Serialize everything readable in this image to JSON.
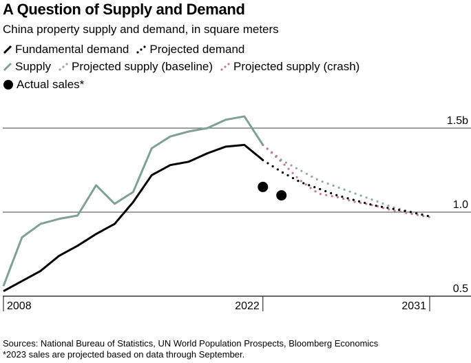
{
  "title": "A Question of Supply and Demand",
  "subtitle": "China property supply and demand, in square meters",
  "legend": [
    {
      "key": "demand",
      "label": "Fundamental demand",
      "style": "solid",
      "color": "#000000"
    },
    {
      "key": "proj_demand",
      "label": "Projected demand",
      "style": "dotted",
      "color": "#000000"
    },
    {
      "key": "supply",
      "label": "Supply",
      "style": "solid",
      "color": "#7fa195"
    },
    {
      "key": "proj_supply_base",
      "label": "Projected supply (baseline)",
      "style": "dotted",
      "color": "#8fa9a0"
    },
    {
      "key": "proj_supply_crash",
      "label": "Projected supply (crash)",
      "style": "dotted",
      "color": "#c07a9a"
    },
    {
      "key": "sales",
      "label": "Actual sales*",
      "style": "marker",
      "color": "#000000"
    }
  ],
  "footer": {
    "sources": "Sources: National Bureau of Statistics, UN World Population Prospects, Bloomberg Economics",
    "note": "*2023 sales are projected based on data through September."
  },
  "chart_data": {
    "type": "line",
    "title": "A Question of Supply and Demand",
    "subtitle": "China property supply and demand, in square meters",
    "xlabel": "",
    "ylabel": "",
    "x_ticks": [
      2008,
      2022,
      2031
    ],
    "x_tick_labels": [
      "2008",
      "2022",
      "2031"
    ],
    "xlim": [
      2008,
      2031
    ],
    "ylim": [
      0.5,
      1.55
    ],
    "y_ticks": [
      0.5,
      1.0,
      1.5
    ],
    "y_tick_labels": [
      "0.5",
      "1.0",
      "1.5b"
    ],
    "grid": true,
    "legend_position": "top-left",
    "series": [
      {
        "name": "Fundamental demand",
        "key": "demand",
        "style": "solid",
        "color": "#000000",
        "x": [
          2008,
          2009,
          2010,
          2011,
          2012,
          2013,
          2014,
          2015,
          2016,
          2017,
          2018,
          2019,
          2020,
          2021,
          2022
        ],
        "values": [
          0.53,
          0.59,
          0.65,
          0.74,
          0.8,
          0.87,
          0.93,
          1.06,
          1.22,
          1.28,
          1.3,
          1.35,
          1.39,
          1.4,
          1.31
        ]
      },
      {
        "name": "Supply",
        "key": "supply",
        "style": "solid",
        "color": "#7fa195",
        "x": [
          2008,
          2009,
          2010,
          2011,
          2012,
          2013,
          2014,
          2015,
          2016,
          2017,
          2018,
          2019,
          2020,
          2021,
          2022
        ],
        "values": [
          0.56,
          0.85,
          0.93,
          0.96,
          0.98,
          1.16,
          1.05,
          1.12,
          1.38,
          1.45,
          1.48,
          1.5,
          1.55,
          1.57,
          1.4
        ]
      },
      {
        "name": "Projected demand",
        "key": "proj_demand",
        "style": "dotted",
        "color": "#000000",
        "x": [
          2022,
          2023,
          2024,
          2025,
          2026,
          2027,
          2028,
          2029,
          2030,
          2031
        ],
        "values": [
          1.31,
          1.24,
          1.18,
          1.14,
          1.1,
          1.07,
          1.04,
          1.02,
          1.0,
          0.975
        ]
      },
      {
        "name": "Projected supply (baseline)",
        "key": "proj_supply_base",
        "style": "dotted",
        "color": "#8fa9a0",
        "x": [
          2022,
          2023,
          2024,
          2025,
          2026,
          2027,
          2028,
          2029,
          2030,
          2031
        ],
        "values": [
          1.4,
          1.31,
          1.25,
          1.19,
          1.15,
          1.11,
          1.07,
          1.03,
          1.0,
          0.975
        ]
      },
      {
        "name": "Projected supply (crash)",
        "key": "proj_supply_crash",
        "style": "dotted",
        "color": "#c07a9a",
        "x": [
          2022,
          2023,
          2024,
          2025,
          2026,
          2027,
          2028,
          2029,
          2030,
          2031
        ],
        "values": [
          1.4,
          1.3,
          1.19,
          1.11,
          1.09,
          1.06,
          1.04,
          1.01,
          0.99,
          0.97
        ]
      },
      {
        "name": "Actual sales*",
        "key": "sales",
        "style": "marker",
        "color": "#000000",
        "x": [
          2022,
          2023
        ],
        "values": [
          1.15,
          1.1
        ]
      }
    ]
  }
}
